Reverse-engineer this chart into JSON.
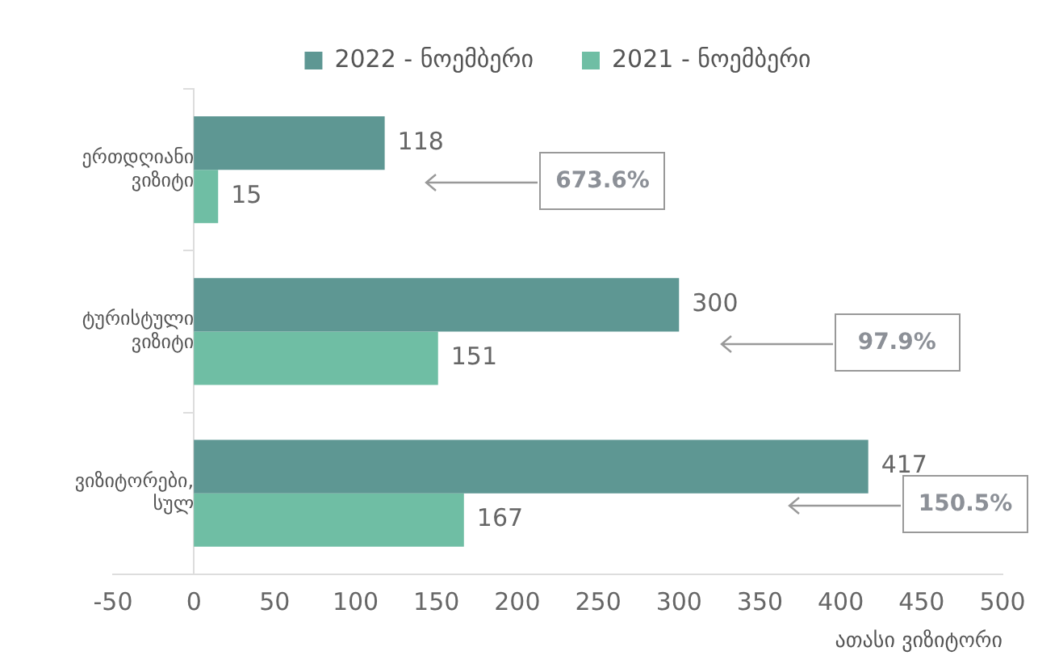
{
  "chart_data": {
    "type": "bar",
    "orientation": "horizontal",
    "categories": [
      "ერთდღიანი ვიზიტი",
      "ტურისტული ვიზიტი",
      "ვიზიტორები, სულ"
    ],
    "series": [
      {
        "name": "2022 - ნოემბერი",
        "color": "#5e9793",
        "values": [
          118,
          300,
          417
        ]
      },
      {
        "name": "2021 - ნოემბერი",
        "color": "#6fbea4",
        "values": [
          15,
          151,
          167
        ]
      }
    ],
    "xlim": [
      -50,
      500
    ],
    "xticks": [
      -50,
      0,
      50,
      100,
      150,
      200,
      250,
      300,
      350,
      400,
      450,
      500
    ],
    "xlabel": "ათასი ვიზიტორი",
    "data_labels": true,
    "legend": "top",
    "grid": false,
    "annotations": [
      "673.6%",
      "97.9%",
      "150.5%"
    ]
  }
}
